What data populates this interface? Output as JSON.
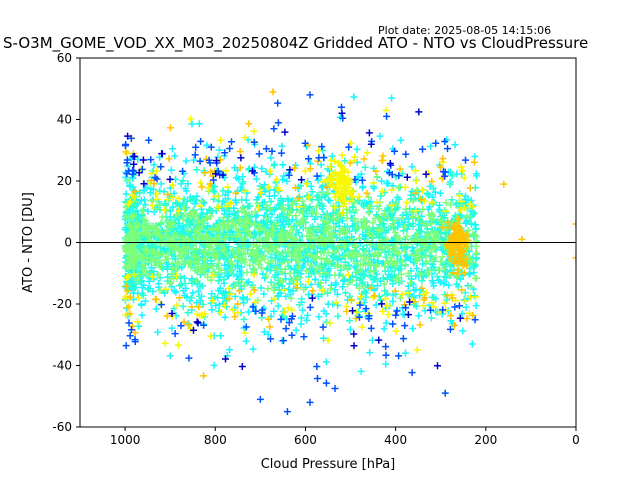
{
  "header": {
    "plot_date": "Plot date: 2025-08-05 14:15:06",
    "title": "S-O3M_GOME_VOD_XX_M03_20250804Z Gridded ATO - NTO vs CloudPressure"
  },
  "chart_data": {
    "type": "scatter",
    "marker": "plus",
    "title": "S-O3M_GOME_VOD_XX_M03_20250804Z Gridded ATO - NTO vs CloudPressure",
    "xlabel": "Cloud Pressure [hPa]",
    "ylabel": "ATO - NTO [DU]",
    "xlim": [
      1100,
      0
    ],
    "ylim": [
      -60,
      60
    ],
    "x_ticks": [
      1000,
      800,
      600,
      400,
      200,
      0
    ],
    "y_ticks": [
      -60,
      -40,
      -20,
      0,
      20,
      40,
      60
    ],
    "zero_line": 0,
    "grid": false,
    "colors": {
      "dense_core": "#7dff7a",
      "cyan": "#19f5ff",
      "teal": "#2bffd0",
      "yellow": "#f7f700",
      "orange": "#ffc400",
      "blue": "#0050ff",
      "deep_blue": "#0000cd"
    },
    "point_cloud": {
      "x_range": [
        1000,
        200
      ],
      "core_y_range": [
        -22,
        22
      ],
      "spread_y_range": [
        -58,
        48
      ],
      "outliers": [
        {
          "x": 590,
          "y": 48
        },
        {
          "x": 520,
          "y": 44
        },
        {
          "x": 670,
          "y": 37
        },
        {
          "x": 420,
          "y": 41
        },
        {
          "x": 160,
          "y": 19
        },
        {
          "x": 120,
          "y": 1
        },
        {
          "x": 0,
          "y": 6
        },
        {
          "x": 0,
          "y": -5
        },
        {
          "x": 640,
          "y": -55
        },
        {
          "x": 590,
          "y": -52
        },
        {
          "x": 700,
          "y": -51
        },
        {
          "x": 230,
          "y": -33
        },
        {
          "x": 290,
          "y": -49
        }
      ]
    }
  }
}
